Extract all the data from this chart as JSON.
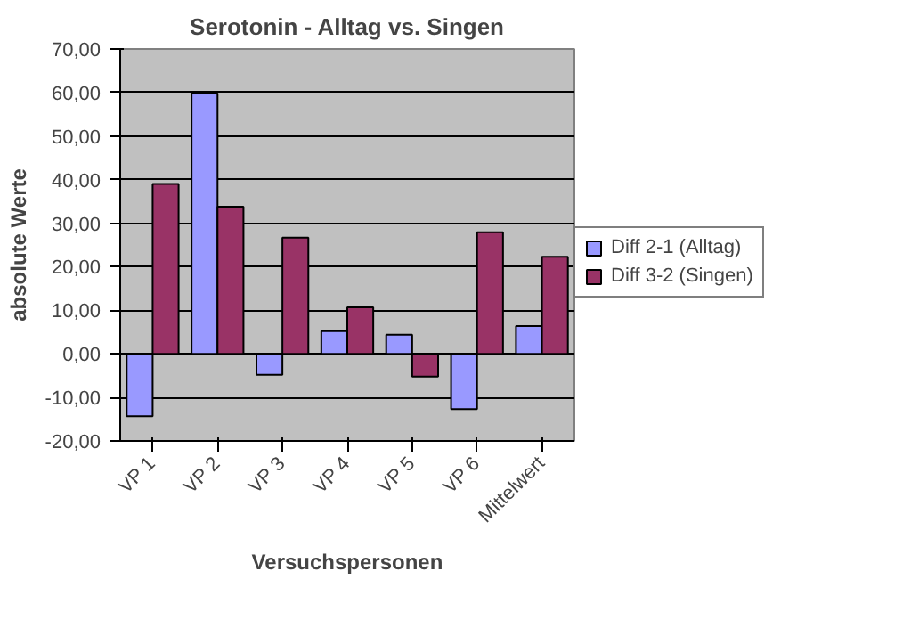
{
  "chart_data": {
    "type": "bar",
    "title": "Serotonin - Alltag vs. Singen",
    "xlabel": "Versuchspersonen",
    "ylabel": "absolute Werte",
    "categories": [
      "VP 1",
      "VP 2",
      "VP 3",
      "VP 4",
      "VP 5",
      "VP 6",
      "Mittelwert"
    ],
    "series": [
      {
        "name": "Diff 2-1 (Alltag)",
        "color": "#9999ff",
        "values": [
          -14.3,
          59.8,
          -4.8,
          5.2,
          4.4,
          -12.7,
          6.4
        ]
      },
      {
        "name": "Diff 3-2 (Singen)",
        "color": "#993366",
        "values": [
          39.0,
          33.8,
          26.7,
          10.7,
          -5.2,
          27.9,
          22.3
        ]
      }
    ],
    "ylim": [
      -20,
      70
    ],
    "yticks": [
      {
        "value": -20,
        "label": "-20,00"
      },
      {
        "value": -10,
        "label": "-10,00"
      },
      {
        "value": 0,
        "label": "0,00"
      },
      {
        "value": 10,
        "label": "10,00"
      },
      {
        "value": 20,
        "label": "20,00"
      },
      {
        "value": 30,
        "label": "30,00"
      },
      {
        "value": 40,
        "label": "40,00"
      },
      {
        "value": 50,
        "label": "50,00"
      },
      {
        "value": 60,
        "label": "60,00"
      },
      {
        "value": 70,
        "label": "70,00"
      }
    ],
    "grid": "y",
    "legend": "right"
  }
}
